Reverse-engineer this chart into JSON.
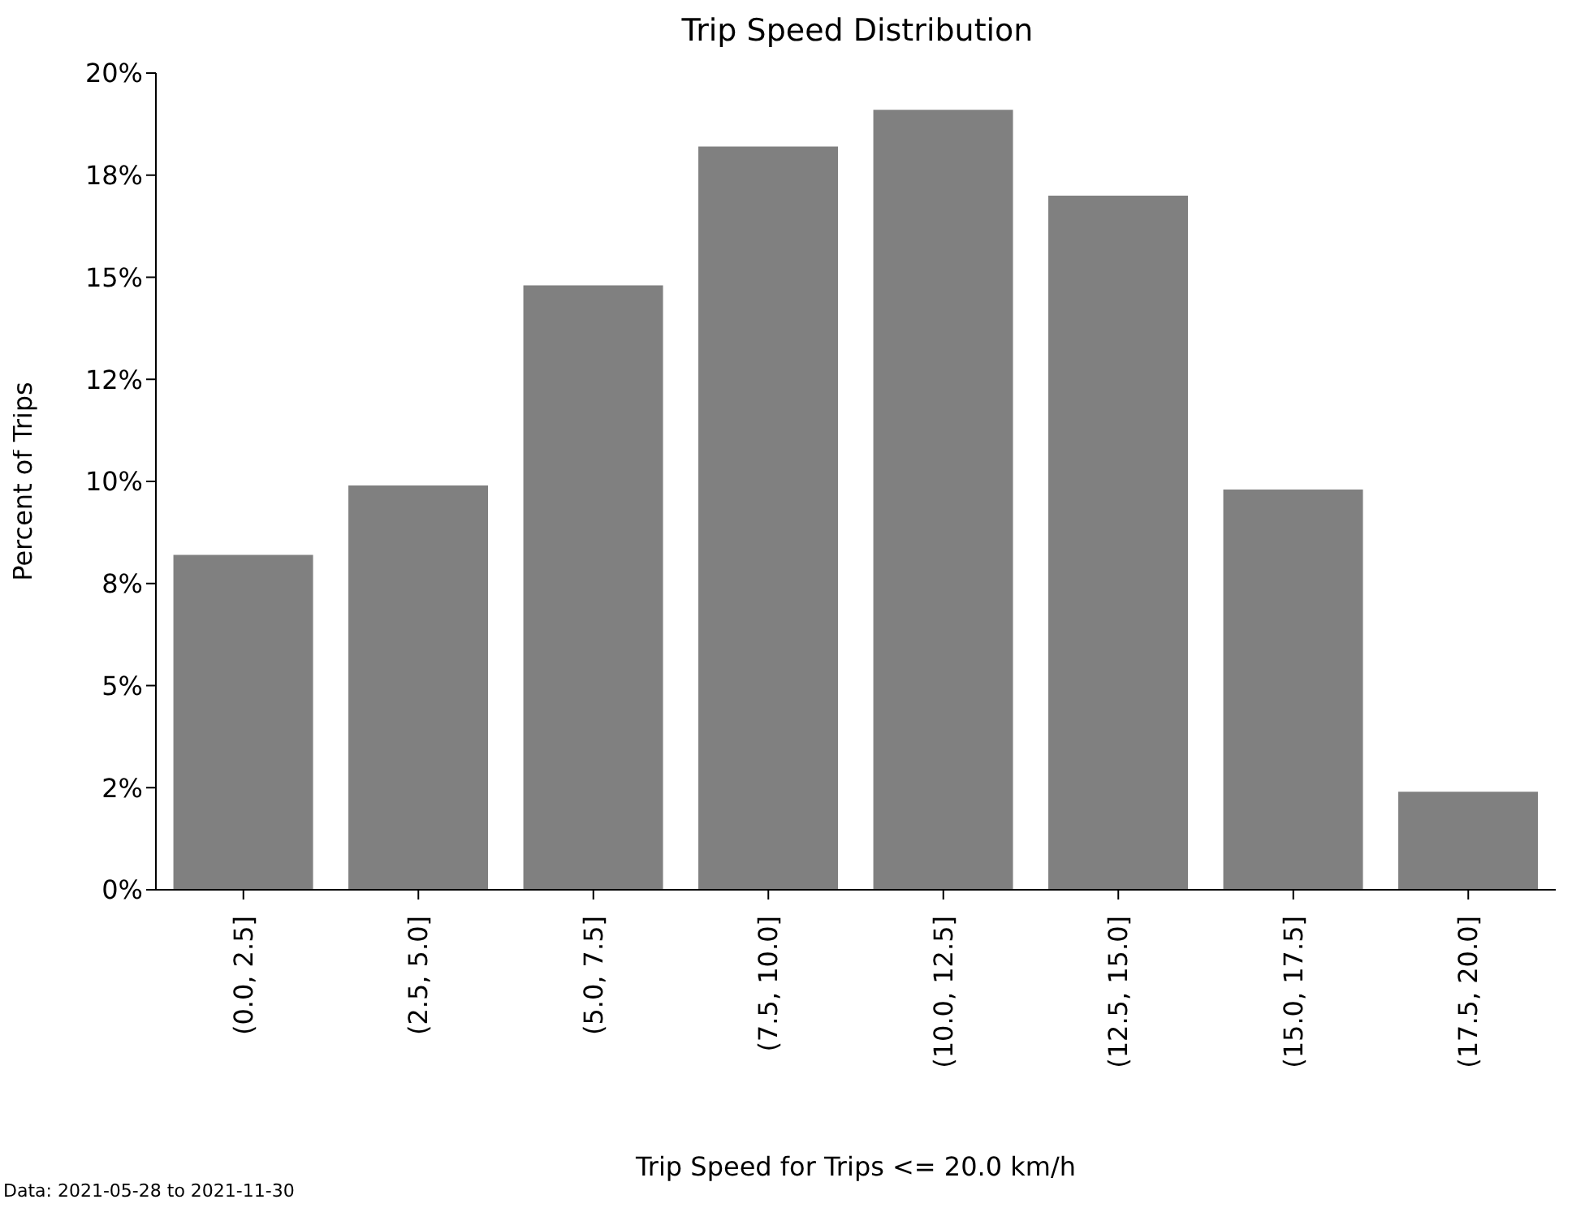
{
  "chart_data": {
    "type": "bar",
    "title": "Trip Speed Distribution",
    "xlabel": "Trip Speed for Trips <= 20.0 km/h",
    "ylabel": "Percent of Trips",
    "categories": [
      "(0.0, 2.5]",
      "(2.5, 5.0]",
      "(5.0, 7.5]",
      "(7.5, 10.0]",
      "(10.0, 12.5]",
      "(12.5, 15.0]",
      "(15.0, 17.5]",
      "(17.5, 20.0]"
    ],
    "values": [
      8.2,
      9.9,
      14.8,
      18.2,
      19.1,
      17.0,
      9.8,
      2.4
    ],
    "color": "#808080",
    "ylim": [
      0,
      20
    ],
    "yticks": [
      {
        "value": 0,
        "label": "0%"
      },
      {
        "value": 2.5,
        "label": "2%"
      },
      {
        "value": 5,
        "label": "5%"
      },
      {
        "value": 7.5,
        "label": "8%"
      },
      {
        "value": 10,
        "label": "10%"
      },
      {
        "value": 12.5,
        "label": "12%"
      },
      {
        "value": 15,
        "label": "15%"
      },
      {
        "value": 17.5,
        "label": "18%"
      },
      {
        "value": 20,
        "label": "20%"
      }
    ],
    "grid": false,
    "legend": false,
    "annotations": [
      "Data: 2021-05-28 to 2021-11-30"
    ]
  }
}
